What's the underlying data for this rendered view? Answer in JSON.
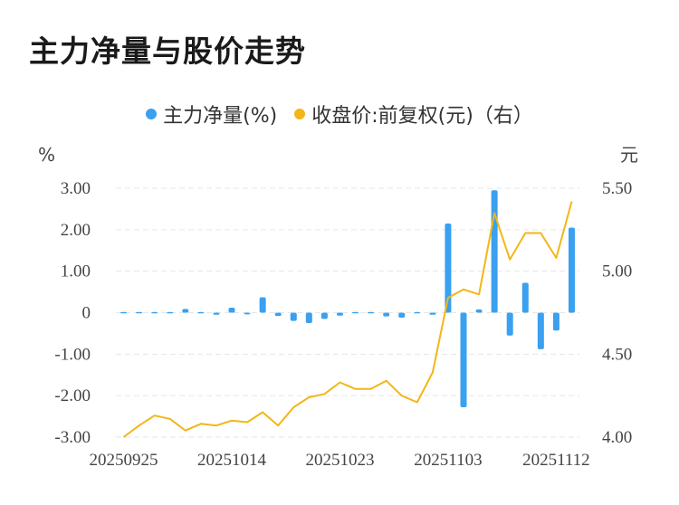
{
  "title": "主力净量与股价走势",
  "colors": {
    "bar": "#3aa0f0",
    "line": "#f2b618",
    "grid": "#e6e6e6"
  },
  "chart_data": {
    "type": "bar+line",
    "legend": [
      {
        "name": "主力净量(%)",
        "color": "#3aa0f0",
        "type": "bar"
      },
      {
        "name": "收盘价:前复权(元)（右）",
        "color": "#f2b618",
        "type": "line"
      }
    ],
    "y_left": {
      "unit": "%",
      "ticks": [
        "3.00",
        "2.00",
        "1.00",
        "0",
        "-1.00",
        "-2.00",
        "-3.00"
      ],
      "range": [
        -3,
        3
      ]
    },
    "y_right": {
      "unit": "元",
      "ticks": [
        "5.50",
        "5.00",
        "4.50",
        "4.00"
      ],
      "range": [
        4.0,
        5.5
      ]
    },
    "x_labels": [
      "20250925",
      "20251014",
      "20251023",
      "20251103",
      "20251112"
    ],
    "x_label_index": [
      0,
      7,
      14,
      21,
      28
    ],
    "n": 30,
    "bars": [
      -0.03,
      -0.01,
      -0.01,
      -0.01,
      0.09,
      0.02,
      -0.05,
      0.12,
      -0.04,
      0.37,
      -0.08,
      -0.2,
      -0.25,
      -0.15,
      -0.07,
      -0.03,
      0.01,
      -0.09,
      -0.12,
      -0.03,
      -0.05,
      2.15,
      -2.28,
      0.08,
      2.95,
      -0.55,
      0.72,
      -0.88,
      -0.43,
      2.05
    ],
    "close": [
      4.0,
      4.07,
      4.13,
      4.11,
      4.04,
      4.08,
      4.07,
      4.1,
      4.09,
      4.15,
      4.07,
      4.18,
      4.24,
      4.26,
      4.33,
      4.29,
      4.29,
      4.34,
      4.25,
      4.21,
      4.39,
      4.84,
      4.89,
      4.86,
      5.35,
      5.07,
      5.23,
      5.23,
      5.08,
      5.42
    ]
  }
}
